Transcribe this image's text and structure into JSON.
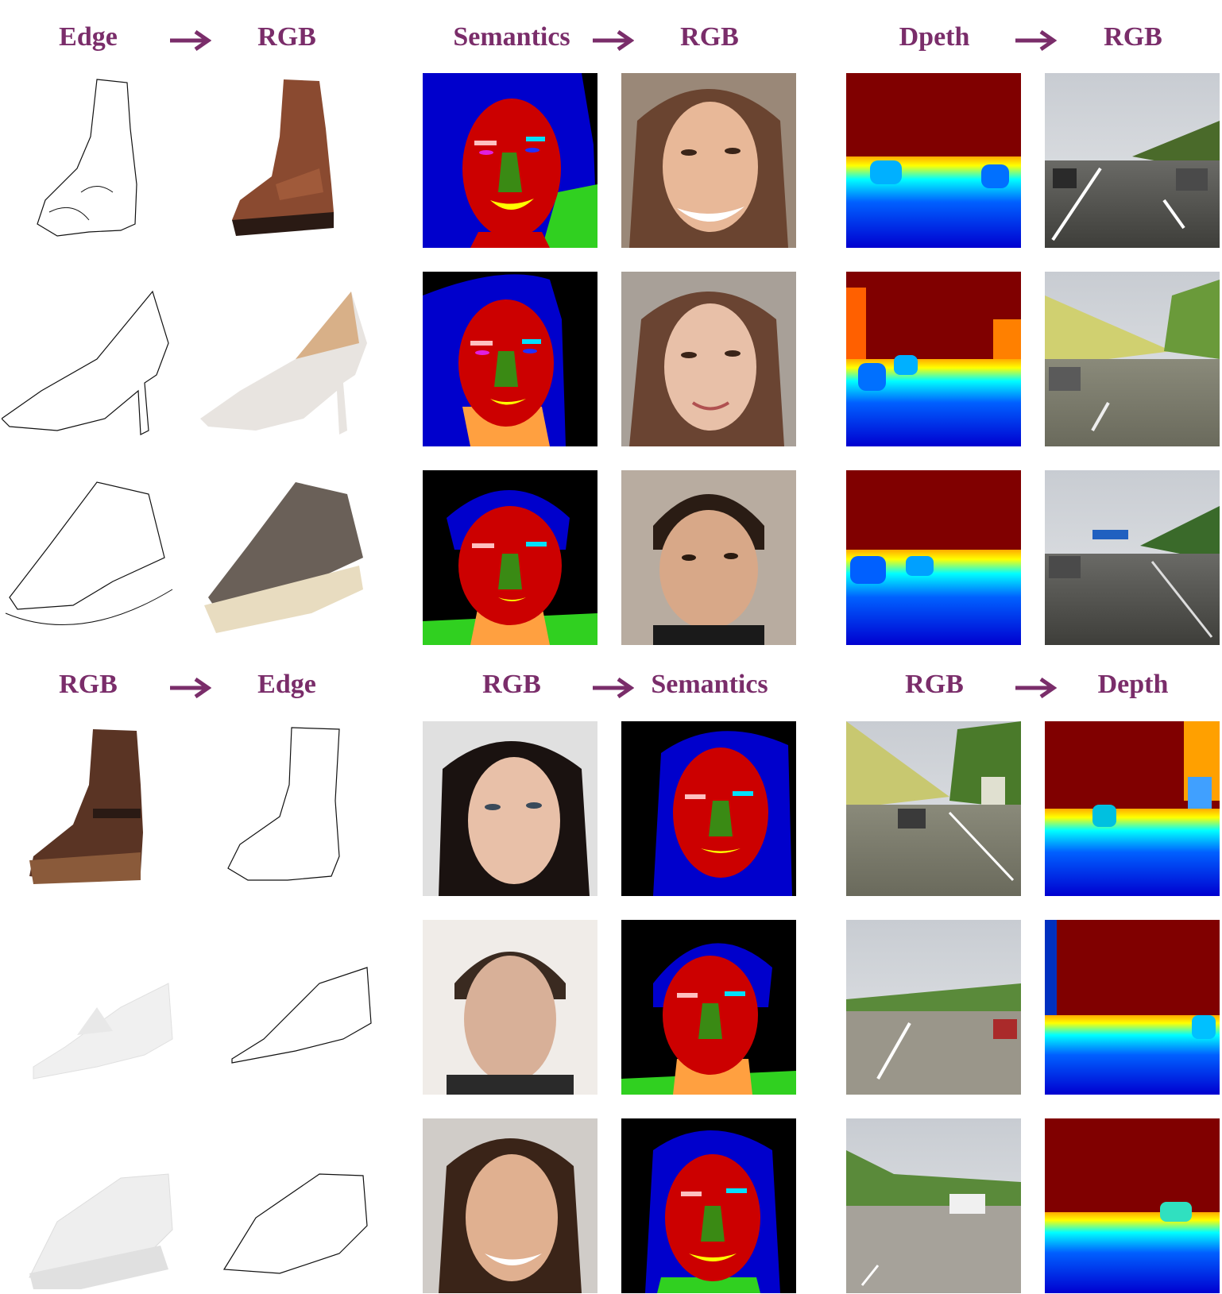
{
  "sections": [
    {
      "headers": [
        {
          "label": "Edge",
          "to": "RGB"
        },
        {
          "label": "Semantics",
          "to": "RGB"
        },
        {
          "label": "Dpeth",
          "to": "RGB"
        }
      ]
    },
    {
      "headers": [
        {
          "label": "RGB",
          "to": "Edge"
        },
        {
          "label": "RGB",
          "to": "Semantics"
        },
        {
          "label": "RGB",
          "to": "Depth"
        }
      ]
    }
  ],
  "colors": {
    "header_text": "#7a2d6a",
    "arrow": "#7a2d6a",
    "seg_hair": "#0000cc",
    "seg_skin": "#cc0000",
    "seg_nose": "#3a8a14",
    "seg_neck": "#ffa040",
    "seg_cloth": "#30d020",
    "depth_far": "#800000",
    "depth_near": "#0000ff"
  },
  "icons": [
    "right-arrow-icon"
  ]
}
